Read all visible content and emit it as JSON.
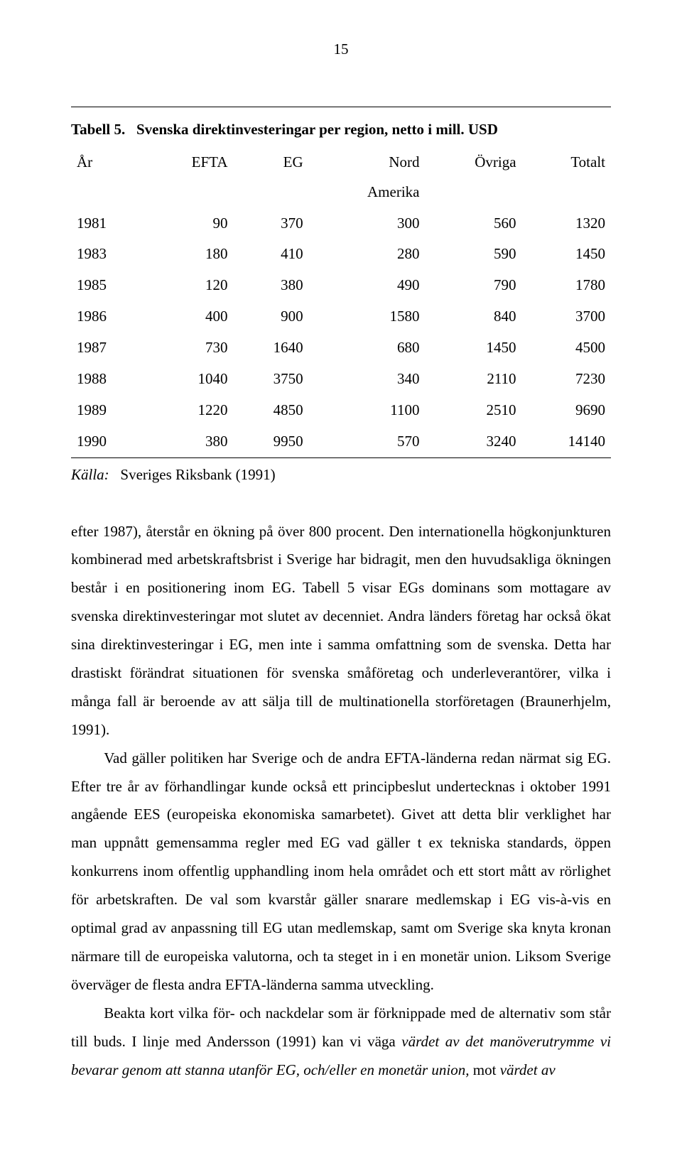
{
  "page_number": "15",
  "table": {
    "type": "table",
    "title_prefix": "Tabell 5.",
    "title_bold": "Svenska direktinvesteringar per region, netto i mill. USD",
    "columns": [
      "År",
      "EFTA",
      "EG",
      "Nord",
      "Övriga",
      "Totalt"
    ],
    "subheader_col3": "Amerika",
    "rows": [
      [
        "1981",
        "90",
        "370",
        "300",
        "560",
        "1320"
      ],
      [
        "1983",
        "180",
        "410",
        "280",
        "590",
        "1450"
      ],
      [
        "1985",
        "120",
        "380",
        "490",
        "790",
        "1780"
      ],
      [
        "1986",
        "400",
        "900",
        "1580",
        "840",
        "3700"
      ],
      [
        "1987",
        "730",
        "1640",
        "680",
        "1450",
        "4500"
      ],
      [
        "1988",
        "1040",
        "3750",
        "340",
        "2110",
        "7230"
      ],
      [
        "1989",
        "1220",
        "4850",
        "1100",
        "2510",
        "9690"
      ],
      [
        "1990",
        "380",
        "9950",
        "570",
        "3240",
        "14140"
      ]
    ],
    "source_label": "Källa:",
    "source_text": "Sveriges Riksbank (1991)"
  },
  "paragraphs": {
    "p1": "efter 1987), återstår en ökning på över 800 procent. Den internationella högkonjunkturen kombinerad med arbetskraftsbrist i Sverige har bidragit, men den huvudsakliga ökningen består i en positionering inom EG. Tabell 5 visar EGs dominans som mottagare av svenska direktinvesteringar mot slutet av decenniet. Andra länders företag har också ökat sina direktinvesteringar i EG, men inte i samma omfattning som de svenska. Detta har drastiskt förändrat situationen för svenska småföretag och underleverantörer, vilka i många fall är beroende av att sälja till de multinationella storföretagen (Braunerhjelm, 1991).",
    "p2": "Vad gäller politiken har Sverige och de andra EFTA-länderna redan närmat sig EG. Efter tre år av förhandlingar kunde också ett principbeslut undertecknas i oktober 1991 angående EES (europeiska ekonomiska samarbetet). Givet att detta blir verklighet har man uppnått gemensamma regler med EG vad gäller t ex tekniska standards, öppen konkurrens inom offentlig upphandling inom hela området och ett stort mått av rörlighet för arbetskraften. De val som kvarstår gäller snarare medlemskap i EG vis-à-vis en optimal grad av anpassning till EG utan medlemskap, samt om Sverige ska knyta kronan närmare till de europeiska valutorna, och ta steget in i en monetär union. Liksom Sverige överväger de flesta andra EFTA-länderna samma utveckling.",
    "p3a": "Beakta kort vilka för- och nackdelar som är förknippade med de alternativ som står till buds. I linje med Andersson (1991) kan vi väga ",
    "p3_i1": "värdet av det manöverutrymme vi bevarar genom att stanna utanför EG, och/eller en monetär union,",
    "p3b": " mot ",
    "p3_i2": "värdet av"
  }
}
